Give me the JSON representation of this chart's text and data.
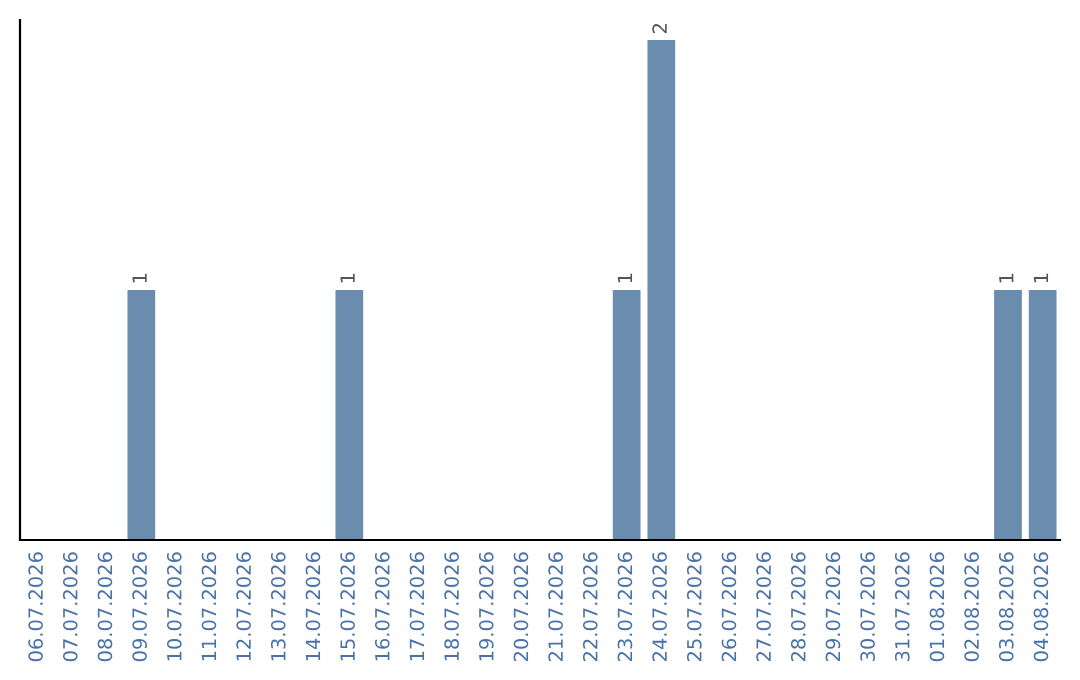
{
  "chart_data": {
    "type": "bar",
    "categories": [
      "06.07.2026",
      "07.07.2026",
      "08.07.2026",
      "09.07.2026",
      "10.07.2026",
      "11.07.2026",
      "12.07.2026",
      "13.07.2026",
      "14.07.2026",
      "15.07.2026",
      "16.07.2026",
      "17.07.2026",
      "18.07.2026",
      "19.07.2026",
      "20.07.2026",
      "21.07.2026",
      "22.07.2026",
      "23.07.2026",
      "24.07.2026",
      "25.07.2026",
      "26.07.2026",
      "27.07.2026",
      "28.07.2026",
      "29.07.2026",
      "30.07.2026",
      "31.07.2026",
      "01.08.2026",
      "02.08.2026",
      "03.08.2026",
      "04.08.2026"
    ],
    "values": [
      0,
      0,
      0,
      1,
      0,
      0,
      0,
      0,
      0,
      1,
      0,
      0,
      0,
      0,
      0,
      0,
      0,
      1,
      2,
      0,
      0,
      0,
      0,
      0,
      0,
      0,
      0,
      0,
      1,
      1
    ],
    "value_labels": [
      null,
      null,
      null,
      "1",
      null,
      null,
      null,
      null,
      null,
      "1",
      null,
      null,
      null,
      null,
      null,
      null,
      null,
      "1",
      "2",
      null,
      null,
      null,
      null,
      null,
      null,
      null,
      null,
      null,
      "1",
      "1"
    ],
    "color": "#6a8cae",
    "tick_labels": "x",
    "grid": false,
    "legend": false
  }
}
